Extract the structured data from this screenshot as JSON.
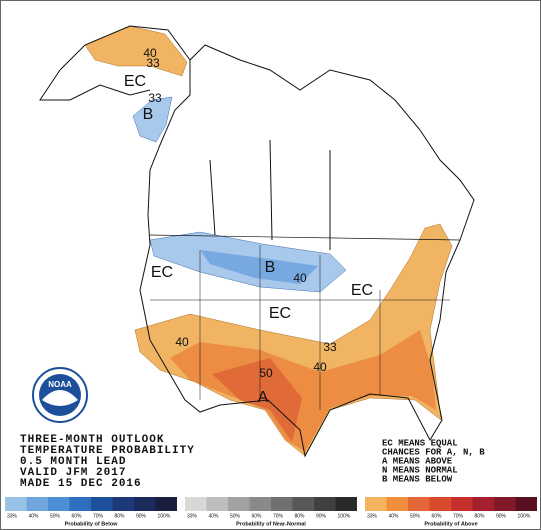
{
  "logo": "NOAA",
  "map": {
    "labels": [
      "40",
      "33",
      "EC",
      "33",
      "B",
      "EC",
      "B",
      "40",
      "EC",
      "EC",
      "40",
      "33",
      "40",
      "50",
      "A"
    ]
  },
  "title_block": [
    "THREE-MONTH OUTLOOK",
    "TEMPERATURE PROBABILITY",
    "0.5 MONTH LEAD",
    "VALID JFM 2017",
    "MADE 15 DEC 2016"
  ],
  "key": [
    "EC MEANS EQUAL",
    "CHANCES FOR A, N, B",
    "A MEANS ABOVE",
    "N MEANS NORMAL",
    "B MEANS BELOW"
  ],
  "legend": [
    {
      "title": "Probability of Below",
      "labels": [
        "33%",
        "40%",
        "50%",
        "60%",
        "70%",
        "80%",
        "90%",
        "100%"
      ],
      "colors": [
        "#9ac2e6",
        "#6fa6dc",
        "#4c8fd6",
        "#2f6fc0",
        "#1e4f9a",
        "#1c3a7a",
        "#1a2a5a",
        "#181f40"
      ]
    },
    {
      "title": "Probability of Near-Normal",
      "labels": [
        "33%",
        "40%",
        "50%",
        "60%",
        "70%",
        "80%",
        "90%",
        "100%"
      ],
      "colors": [
        "#d8d8d8",
        "#bdbdbd",
        "#a3a3a3",
        "#8a8a8a",
        "#707070",
        "#585858",
        "#404040",
        "#2a2a2a"
      ]
    },
    {
      "title": "Probability of Above",
      "labels": [
        "33%",
        "40%",
        "50%",
        "60%",
        "70%",
        "80%",
        "90%",
        "100%"
      ],
      "colors": [
        "#f2b45e",
        "#ef8f3c",
        "#e6683a",
        "#d84a2a",
        "#c5302c",
        "#a5202c",
        "#82182a",
        "#5a1020"
      ]
    }
  ]
}
